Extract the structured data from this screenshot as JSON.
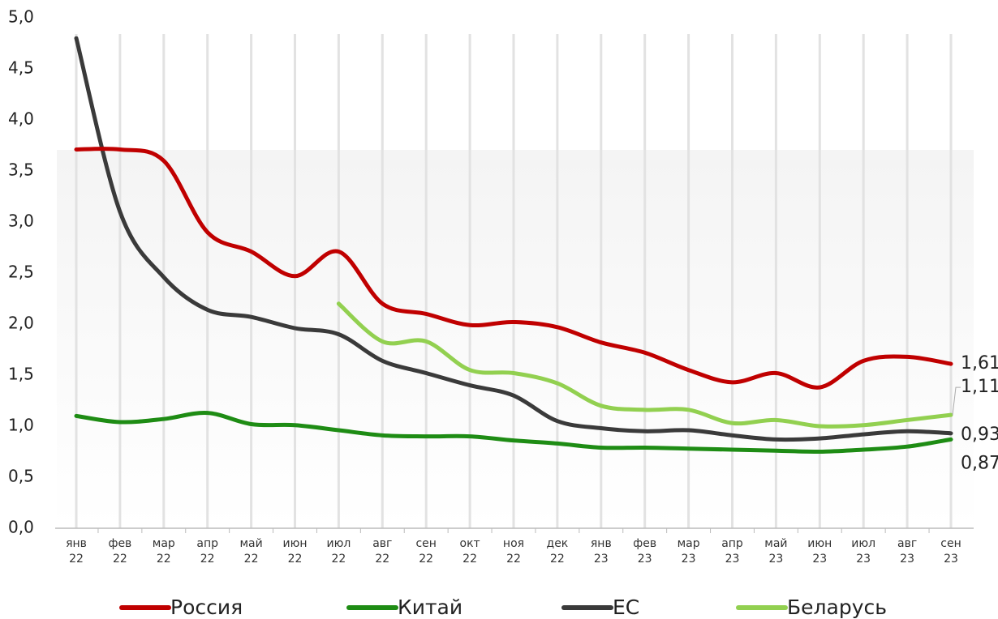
{
  "chart_data": {
    "type": "line",
    "categories": [
      "янв 22",
      "фев 22",
      "мар 22",
      "апр 22",
      "май 22",
      "июн 22",
      "июл 22",
      "авг 22",
      "сен 22",
      "окт 22",
      "ноя 22",
      "дек 22",
      "янв 23",
      "фев 23",
      "мар 23",
      "апр 23",
      "май 23",
      "июн 23",
      "июл 23",
      "авг 23",
      "сен 23"
    ],
    "series": [
      {
        "name": "Россия",
        "color": "#c00000",
        "values": [
          3.71,
          3.71,
          3.6,
          2.9,
          2.71,
          2.47,
          2.71,
          2.2,
          2.1,
          1.99,
          2.02,
          1.97,
          1.82,
          1.72,
          1.55,
          1.43,
          1.52,
          1.38,
          1.64,
          1.68,
          1.61
        ],
        "value_labels": [
          null,
          null,
          null,
          null,
          null,
          null,
          null,
          null,
          null,
          null,
          null,
          null,
          null,
          null,
          null,
          null,
          null,
          null,
          null,
          null,
          "1,61"
        ]
      },
      {
        "name": "Китай",
        "color": "#1e8c14",
        "values": [
          1.1,
          1.04,
          1.07,
          1.13,
          1.02,
          1.01,
          0.96,
          0.91,
          0.9,
          0.9,
          0.86,
          0.83,
          0.79,
          0.79,
          0.78,
          0.77,
          0.76,
          0.75,
          0.77,
          0.8,
          0.87
        ],
        "value_labels": [
          null,
          null,
          null,
          null,
          null,
          null,
          null,
          null,
          null,
          null,
          null,
          null,
          null,
          null,
          null,
          null,
          null,
          null,
          null,
          null,
          "0,87"
        ]
      },
      {
        "name": "ЕС",
        "color": "#3a3a3a",
        "values": [
          4.8,
          3.1,
          2.46,
          2.14,
          2.07,
          1.96,
          1.9,
          1.64,
          1.52,
          1.4,
          1.3,
          1.05,
          0.98,
          0.95,
          0.96,
          0.91,
          0.87,
          0.88,
          0.92,
          0.95,
          0.93
        ],
        "value_labels": [
          null,
          null,
          null,
          null,
          null,
          null,
          null,
          null,
          null,
          null,
          null,
          null,
          null,
          null,
          null,
          null,
          null,
          null,
          null,
          null,
          "0,93"
        ]
      },
      {
        "name": "Беларусь",
        "color": "#92d050",
        "values": [
          null,
          null,
          null,
          null,
          null,
          null,
          2.2,
          1.83,
          1.83,
          1.55,
          1.52,
          1.42,
          1.2,
          1.16,
          1.16,
          1.03,
          1.06,
          1.0,
          1.01,
          1.06,
          1.11
        ],
        "value_labels": [
          null,
          null,
          null,
          null,
          null,
          null,
          null,
          null,
          null,
          null,
          null,
          null,
          null,
          null,
          null,
          null,
          null,
          null,
          null,
          null,
          "1,11"
        ]
      }
    ],
    "ylim": [
      0,
      5
    ],
    "yticks": [
      {
        "value": 0,
        "label": "0,0"
      },
      {
        "value": 0.5,
        "label": "0,5"
      },
      {
        "value": 1,
        "label": "1,0"
      },
      {
        "value": 1.5,
        "label": "1,5"
      },
      {
        "value": 2,
        "label": "2,0"
      },
      {
        "value": 2.5,
        "label": "2,5"
      },
      {
        "value": 3,
        "label": "3,0"
      },
      {
        "value": 3.5,
        "label": "3,5"
      },
      {
        "value": 4,
        "label": "4,0"
      },
      {
        "value": 4.5,
        "label": "4,5"
      },
      {
        "value": 5,
        "label": "5,0"
      }
    ],
    "legend": "bottom"
  }
}
